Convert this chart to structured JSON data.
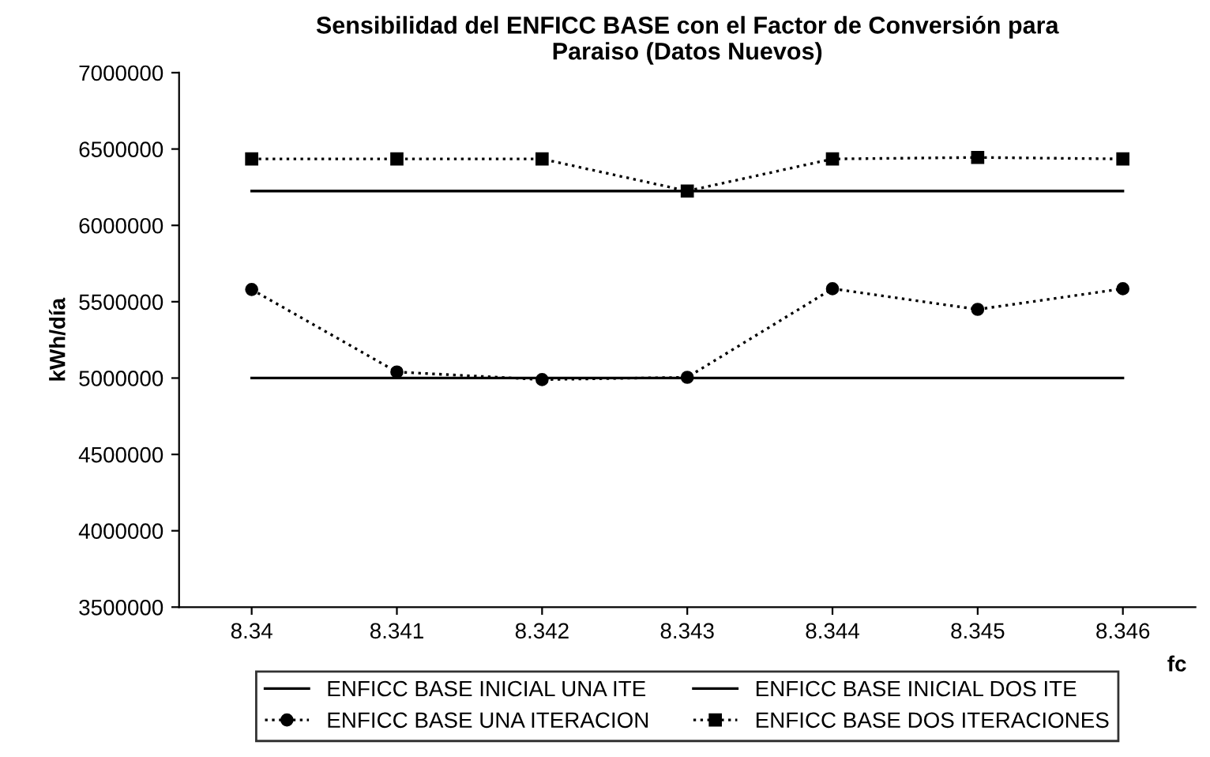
{
  "chart_data": {
    "type": "line",
    "title": "Sensibilidad del ENFICC BASE con el Factor de Conversión para\nParaiso (Datos Nuevos)",
    "xlabel": "fc",
    "ylabel": "kWh/día",
    "categories": [
      "8.34",
      "8.341",
      "8.342",
      "8.343",
      "8.344",
      "8.345",
      "8.346"
    ],
    "series": [
      {
        "name": "ENFICC BASE INICIAL UNA ITE",
        "color": "#000000",
        "line_style": "solid",
        "marker": "none",
        "values": [
          5000000,
          5000000,
          5000000,
          5000000,
          5000000,
          5000000,
          5000000
        ]
      },
      {
        "name": "ENFICC BASE INICIAL DOS ITE",
        "color": "#000000",
        "line_style": "solid",
        "marker": "none",
        "values": [
          6225000,
          6225000,
          6225000,
          6225000,
          6225000,
          6225000,
          6225000
        ]
      },
      {
        "name": "ENFICC BASE UNA ITERACION",
        "color": "#000000",
        "line_style": "dotted",
        "marker": "circle",
        "values": [
          5580000,
          5040000,
          4990000,
          5005000,
          5585000,
          5450000,
          5585000
        ]
      },
      {
        "name": "ENFICC BASE DOS ITERACIONES",
        "color": "#000000",
        "line_style": "dotted",
        "marker": "square",
        "values": [
          6435000,
          6435000,
          6435000,
          6225000,
          6435000,
          6445000,
          6435000
        ]
      }
    ],
    "ylim": [
      3500000,
      7000000
    ],
    "yticks": [
      3500000,
      4000000,
      4500000,
      5000000,
      5500000,
      6000000,
      6500000,
      7000000
    ],
    "grid": false,
    "legend": "bottom"
  }
}
